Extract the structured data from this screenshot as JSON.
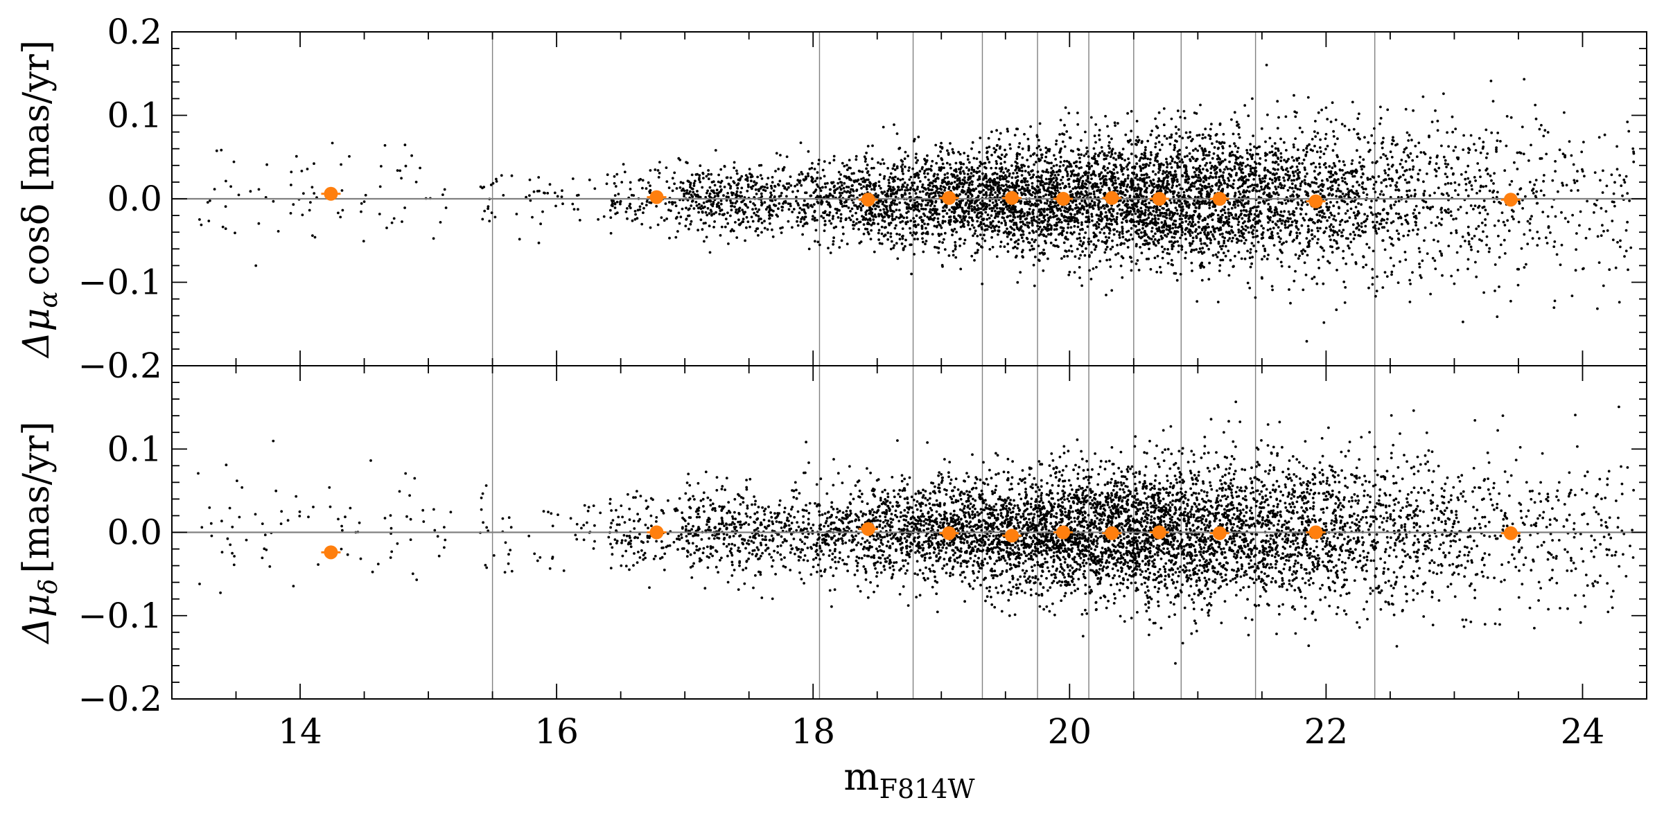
{
  "chart_data": {
    "type": "scatter",
    "shared_x": {
      "label_base": "m",
      "label_sub": "F814W",
      "xlim": [
        13.0,
        24.5
      ],
      "ticks": [
        14,
        16,
        18,
        20,
        22,
        24
      ],
      "tick_labels": [
        "14",
        "16",
        "18",
        "20",
        "22",
        "24"
      ]
    },
    "bin_edges": [
      15.5,
      18.05,
      18.78,
      19.32,
      19.75,
      20.15,
      20.5,
      20.87,
      21.45,
      22.38
    ],
    "reference_line_y": 0.0,
    "panels": [
      {
        "id": "ra",
        "ylabel_prefix": "Δμ",
        "ylabel_sub": "α",
        "ylabel_suffix": "cosδ [mas/yr]",
        "ylim": [
          -0.2,
          0.2
        ],
        "yticks": [
          -0.2,
          -0.1,
          0.0,
          0.1,
          0.2
        ],
        "ytick_labels": [
          "−0.2",
          "−0.1",
          "0.0",
          "0.1",
          "0.2"
        ],
        "binned_means": {
          "x": [
            14.24,
            16.78,
            18.43,
            19.06,
            19.55,
            19.95,
            20.33,
            20.7,
            21.17,
            21.92,
            23.44
          ],
          "y": [
            0.006,
            0.002,
            -0.001,
            0.001,
            0.001,
            0.0,
            0.001,
            0.0,
            0.0,
            -0.003,
            -0.001
          ]
        },
        "scatter_envelope": {
          "x": [
            13.0,
            14.0,
            15.0,
            16.0,
            17.0,
            18.0,
            19.0,
            20.0,
            21.0,
            22.0,
            23.0,
            24.5
          ],
          "sigma": [
            0.03,
            0.03,
            0.025,
            0.018,
            0.02,
            0.025,
            0.03,
            0.035,
            0.04,
            0.045,
            0.05,
            0.055
          ]
        }
      },
      {
        "id": "dec",
        "ylabel_prefix": "Δμ",
        "ylabel_sub": "δ",
        "ylabel_suffix": "[mas/yr]",
        "ylim": [
          -0.2,
          0.2
        ],
        "yticks": [
          -0.2,
          -0.1,
          0.0,
          0.1,
          0.2
        ],
        "ytick_labels": [
          "−0.2",
          "−0.1",
          "0.0",
          "0.1",
          "0.2"
        ],
        "binned_means": {
          "x": [
            14.24,
            16.78,
            18.43,
            19.06,
            19.55,
            19.95,
            20.33,
            20.7,
            21.17,
            21.92,
            23.44
          ],
          "y": [
            -0.024,
            0.0,
            0.004,
            -0.001,
            -0.004,
            0.0,
            -0.001,
            0.0,
            -0.001,
            0.0,
            -0.001
          ]
        },
        "scatter_envelope": {
          "x": [
            13.0,
            14.0,
            15.0,
            16.0,
            17.0,
            18.0,
            19.0,
            20.0,
            21.0,
            22.0,
            23.0,
            24.5
          ],
          "sigma": [
            0.04,
            0.035,
            0.03,
            0.025,
            0.025,
            0.028,
            0.032,
            0.037,
            0.042,
            0.045,
            0.048,
            0.05
          ]
        }
      }
    ],
    "colors": {
      "points": "#000000",
      "means": "#ff7f0e",
      "bin_lines": "#808080",
      "zero_line": "#808080",
      "axes": "#000000"
    },
    "grid": false,
    "legend": "none"
  }
}
